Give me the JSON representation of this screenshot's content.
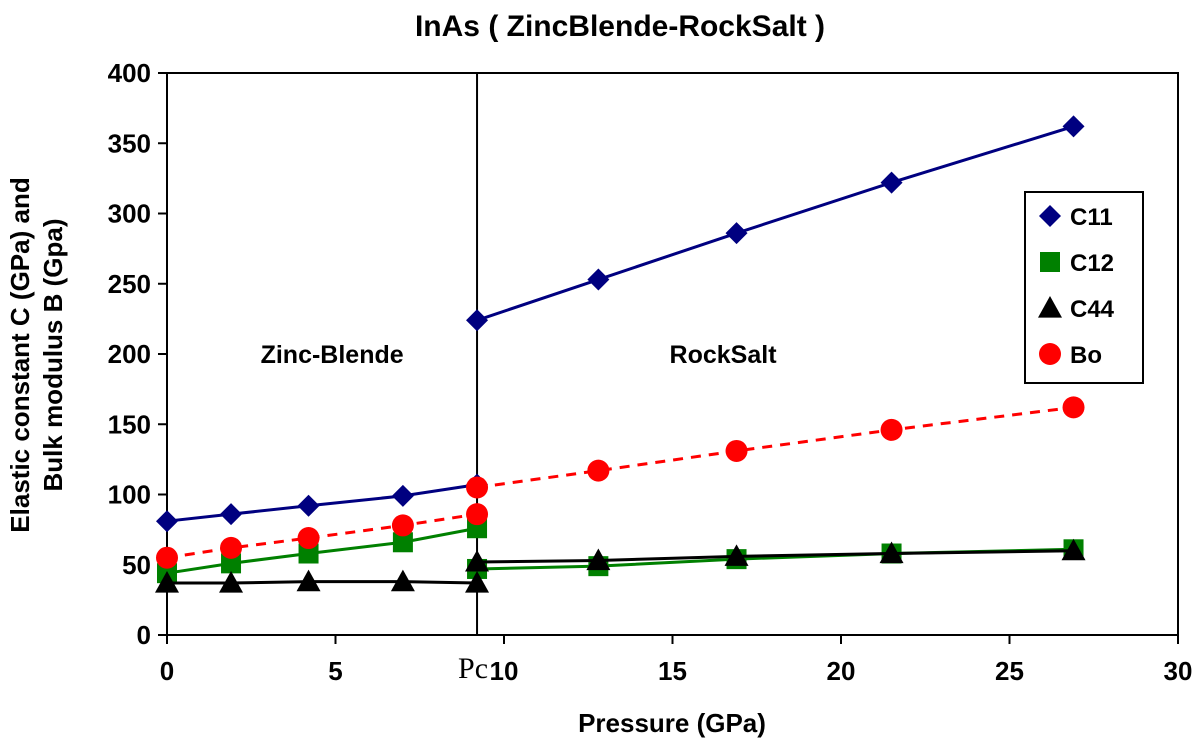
{
  "chart_data": {
    "type": "line",
    "title": "InAs ( ZincBlende-RockSalt )",
    "xlabel": "Pressure (GPa)",
    "ylabel_line1": "Elastic constant C (GPa) and",
    "ylabel_line2": "Bulk modulus B (Gpa)",
    "xlim": [
      0,
      30
    ],
    "ylim": [
      0,
      400
    ],
    "xticks": [
      0,
      5,
      10,
      15,
      20,
      25,
      30
    ],
    "yticks": [
      0,
      50,
      100,
      150,
      200,
      250,
      300,
      350,
      400
    ],
    "grid": false,
    "legend_position": "right",
    "transition": {
      "x": 9.2,
      "label": "Pc"
    },
    "regions": [
      {
        "label": "Zinc-Blende",
        "x": 4.9,
        "y": 200
      },
      {
        "label": "RockSalt",
        "x": 16.5,
        "y": 200
      }
    ],
    "series": [
      {
        "name": "C11",
        "marker": "diamond",
        "color": "#000080",
        "dash": "solid",
        "segments": [
          [
            [
              0,
              81
            ],
            [
              1.9,
              86
            ],
            [
              4.2,
              92
            ],
            [
              7,
              99
            ],
            [
              9.2,
              107
            ]
          ],
          [
            [
              9.2,
              224
            ],
            [
              12.8,
              253
            ],
            [
              16.9,
              286
            ],
            [
              21.5,
              322
            ],
            [
              26.9,
              362
            ]
          ]
        ]
      },
      {
        "name": "C12",
        "marker": "square",
        "color": "#008000",
        "dash": "solid",
        "segments": [
          [
            [
              0,
              44
            ],
            [
              1.9,
              51
            ],
            [
              4.2,
              58
            ],
            [
              7,
              66
            ],
            [
              9.2,
              76
            ]
          ],
          [
            [
              9.2,
              47
            ],
            [
              12.8,
              49
            ],
            [
              16.9,
              54
            ],
            [
              21.5,
              58
            ],
            [
              26.9,
              61
            ]
          ]
        ]
      },
      {
        "name": "C44",
        "marker": "triangle",
        "color": "#000000",
        "dash": "solid",
        "segments": [
          [
            [
              0,
              37
            ],
            [
              1.9,
              37
            ],
            [
              4.2,
              38
            ],
            [
              7,
              38
            ],
            [
              9.2,
              37
            ]
          ],
          [
            [
              9.2,
              52
            ],
            [
              12.8,
              53
            ],
            [
              16.9,
              56
            ],
            [
              21.5,
              58
            ],
            [
              26.9,
              60
            ]
          ]
        ]
      },
      {
        "name": "Bo",
        "marker": "circle",
        "color": "#ff0000",
        "dash": "dashed",
        "segments": [
          [
            [
              0,
              55
            ],
            [
              1.9,
              62
            ],
            [
              4.2,
              69
            ],
            [
              7,
              78
            ],
            [
              9.2,
              86
            ]
          ],
          [
            [
              9.2,
              105
            ],
            [
              12.8,
              117
            ],
            [
              16.9,
              131
            ],
            [
              21.5,
              146
            ],
            [
              26.9,
              162
            ]
          ]
        ]
      }
    ]
  }
}
